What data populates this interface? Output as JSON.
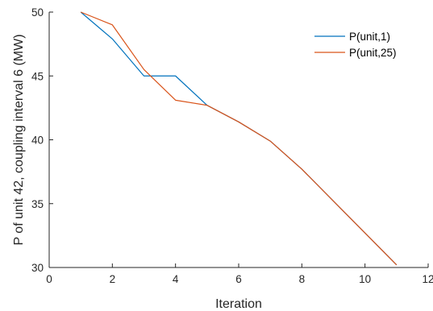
{
  "chart_data": {
    "type": "line",
    "title": "",
    "xlabel": "Iteration",
    "ylabel": "P of unit 42, coupling interval 6 (MW)",
    "xlim": [
      0,
      12
    ],
    "ylim": [
      30,
      50
    ],
    "xticks": [
      0,
      2,
      4,
      6,
      8,
      10,
      12
    ],
    "yticks": [
      30,
      35,
      40,
      45,
      50
    ],
    "grid": false,
    "legend": "top-right",
    "series": [
      {
        "name": "P(unit,1)",
        "color": "#0072BD",
        "x": [
          1,
          2,
          3,
          4,
          5,
          6,
          7,
          8,
          9,
          10,
          11
        ],
        "y": [
          50,
          47.9,
          45.0,
          45.0,
          42.7,
          41.4,
          39.9,
          37.7,
          35.2,
          32.7,
          30.2
        ]
      },
      {
        "name": "P(unit,25)",
        "color": "#D95319",
        "x": [
          1,
          2,
          3,
          4,
          5,
          6,
          7,
          8,
          9,
          10,
          11
        ],
        "y": [
          50,
          49.0,
          45.5,
          43.1,
          42.7,
          41.4,
          39.9,
          37.7,
          35.2,
          32.7,
          30.2
        ]
      }
    ]
  }
}
